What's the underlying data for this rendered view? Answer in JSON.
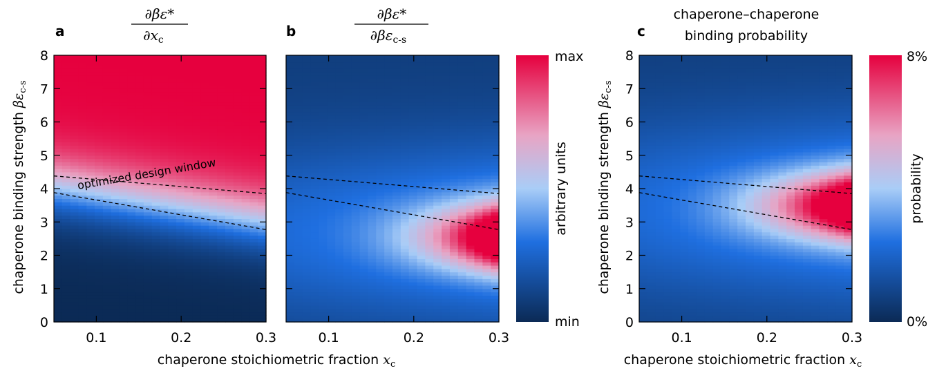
{
  "chart_data": [
    {
      "panel": "a",
      "type": "heatmap",
      "title_num": "∂βε*",
      "title_den": "∂x",
      "title_den_sub": "c",
      "xlabel": "chaperone stoichiometric fraction",
      "xlabel_var": "x",
      "xlabel_sub": "c",
      "ylabel": "chaperone binding strength",
      "ylabel_var": "βε",
      "ylabel_sub": "c-s",
      "xlim": [
        0.05,
        0.3
      ],
      "ylim": [
        0,
        8
      ],
      "x_ticks": [
        0.1,
        0.2,
        0.3
      ],
      "y_ticks": [
        0,
        1,
        2,
        3,
        4,
        5,
        6,
        7,
        8
      ],
      "colormap": [
        "#0b2a55",
        "#1f6fe0",
        "#a9cdf7",
        "#e8a4c4",
        "#e6003e"
      ],
      "annotation": "optimized design window",
      "window_lines": [
        {
          "x": [
            0.05,
            0.3
          ],
          "y": [
            4.38,
            3.85
          ]
        },
        {
          "x": [
            0.05,
            0.3
          ],
          "y": [
            3.88,
            2.77
          ]
        }
      ]
    },
    {
      "panel": "b",
      "type": "heatmap",
      "title_num": "∂βε*",
      "title_den": "∂βε",
      "title_den_sub": "c-s",
      "xlabel": "chaperone stoichiometric fraction",
      "xlabel_var": "x",
      "xlabel_sub": "c",
      "xlim": [
        0.05,
        0.3
      ],
      "ylim": [
        0,
        8
      ],
      "x_ticks": [
        0.1,
        0.2,
        0.3
      ],
      "y_ticks": [
        0,
        1,
        2,
        3,
        4,
        5,
        6,
        7,
        8
      ],
      "colorbar": {
        "label": "arbitrary units",
        "max_label": "max",
        "min_label": "min"
      },
      "window_lines": [
        {
          "x": [
            0.05,
            0.3
          ],
          "y": [
            4.38,
            3.85
          ]
        },
        {
          "x": [
            0.05,
            0.3
          ],
          "y": [
            3.88,
            2.77
          ]
        }
      ],
      "peak": {
        "x": 0.3,
        "y": 2.5
      }
    },
    {
      "panel": "c",
      "type": "heatmap",
      "title": "chaperone–chaperone",
      "title_line2": "binding probability",
      "xlabel": "chaperone stoichiometric fraction",
      "xlabel_var": "x",
      "xlabel_sub": "c",
      "ylabel": "chaperone binding strength",
      "ylabel_var": "βε",
      "ylabel_sub": "c-s",
      "xlim": [
        0.05,
        0.3
      ],
      "ylim": [
        0,
        8
      ],
      "x_ticks": [
        0.1,
        0.2,
        0.3
      ],
      "y_ticks": [
        0,
        1,
        2,
        3,
        4,
        5,
        6,
        7,
        8
      ],
      "colorbar": {
        "label": "probability",
        "max_label": "8%",
        "min_label": "0%"
      },
      "window_lines": [
        {
          "x": [
            0.05,
            0.3
          ],
          "y": [
            4.38,
            3.85
          ]
        },
        {
          "x": [
            0.05,
            0.3
          ],
          "y": [
            3.88,
            2.77
          ]
        }
      ],
      "peak": {
        "x": 0.3,
        "y": 3.5
      }
    }
  ]
}
